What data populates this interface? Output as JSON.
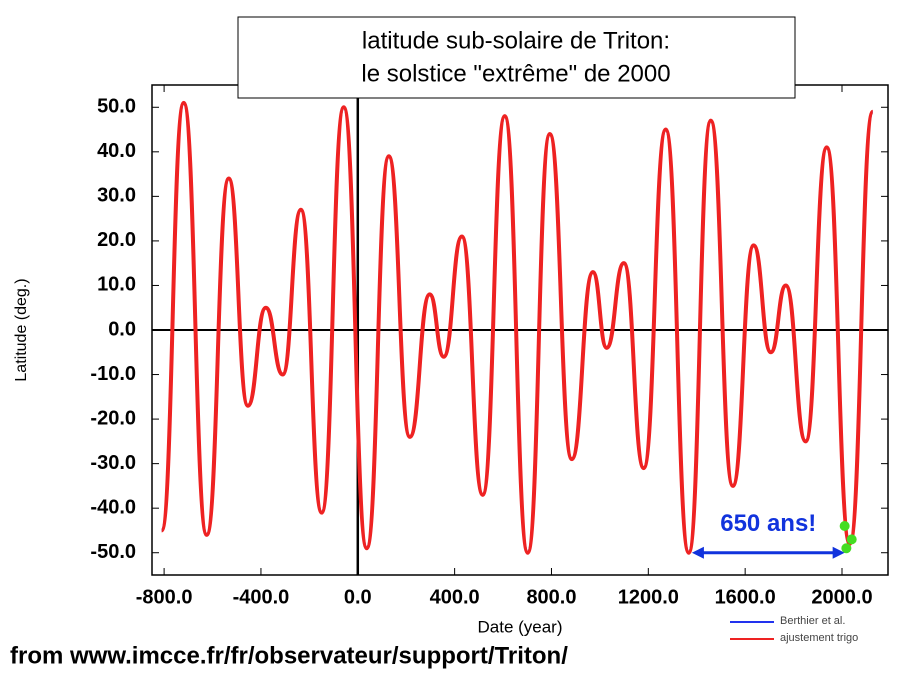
{
  "chart_data": {
    "type": "line",
    "title": [
      "latitude sub-solaire de Triton:",
      "le solstice \"extrême\" de 2000"
    ],
    "x_label": "Date  (year)",
    "y_label": "Latitude  (deg.)",
    "xlim": [
      -850,
      2190
    ],
    "ylim": [
      -55,
      55
    ],
    "xticks": [
      {
        "value": -800,
        "label": "-800.0"
      },
      {
        "value": -400,
        "label": "-400.0"
      },
      {
        "value": 0,
        "label": "0.0"
      },
      {
        "value": 400,
        "label": "400.0"
      },
      {
        "value": 800,
        "label": "800.0"
      },
      {
        "value": 1200,
        "label": "1200.0"
      },
      {
        "value": 1600,
        "label": "1600.0"
      },
      {
        "value": 2000,
        "label": "2000.0"
      }
    ],
    "yticks": [
      {
        "value": 50,
        "label": "50.0"
      },
      {
        "value": 40,
        "label": "40.0"
      },
      {
        "value": 30,
        "label": "30.0"
      },
      {
        "value": 20,
        "label": "20.0"
      },
      {
        "value": 10,
        "label": "10.0"
      },
      {
        "value": 0,
        "label": "0.0"
      },
      {
        "value": -10,
        "label": "-10.0"
      },
      {
        "value": -20,
        "label": "-20.0"
      },
      {
        "value": -30,
        "label": "-30.0"
      },
      {
        "value": -40,
        "label": "-40.0"
      },
      {
        "value": -50,
        "label": "-50.0"
      }
    ],
    "zero_lines": true,
    "x": [
      -810,
      -719,
      -624,
      -533,
      -454,
      -380,
      -310,
      -235,
      -149,
      -58,
      37,
      128,
      215,
      297,
      355,
      430,
      516,
      607,
      702,
      793,
      884,
      971,
      1028,
      1099,
      1181,
      1272,
      1367,
      1458,
      1549,
      1635,
      1706,
      1768,
      1850,
      1937,
      2032,
      2127
    ],
    "series": [
      {
        "name": "Berthier et al.",
        "color": "#2233ee",
        "values": [
          -45,
          51,
          -46,
          34,
          -17,
          5,
          -10,
          27,
          -41,
          50,
          -49,
          39,
          -24,
          8,
          -6,
          21,
          -37,
          48,
          -50,
          44,
          -29,
          13,
          -4,
          15,
          -31,
          45,
          -50,
          47,
          -35,
          19,
          -5,
          10,
          -25,
          41,
          -48,
          49
        ]
      },
      {
        "name": "ajustement trigo",
        "color": "#ee2222",
        "values": [
          -45,
          51,
          -46,
          34,
          -17,
          5,
          -10,
          27,
          -41,
          50,
          -49,
          39,
          -24,
          8,
          -6,
          21,
          -37,
          48,
          -50,
          44,
          -29,
          13,
          -4,
          15,
          -31,
          45,
          -50,
          47,
          -35,
          19,
          -5,
          10,
          -25,
          41,
          -48,
          49
        ]
      }
    ],
    "annotation": {
      "text": "650 ans!",
      "color": "#1133dd",
      "x": [
        1380,
        2011
      ],
      "y": -50
    },
    "highlight_points": {
      "color": "#44dd22",
      "x": [
        2011,
        2040,
        2018
      ],
      "y": [
        -44,
        -47,
        -49
      ]
    },
    "source": "from www.imcce.fr/fr/observateur/support/Triton/"
  }
}
